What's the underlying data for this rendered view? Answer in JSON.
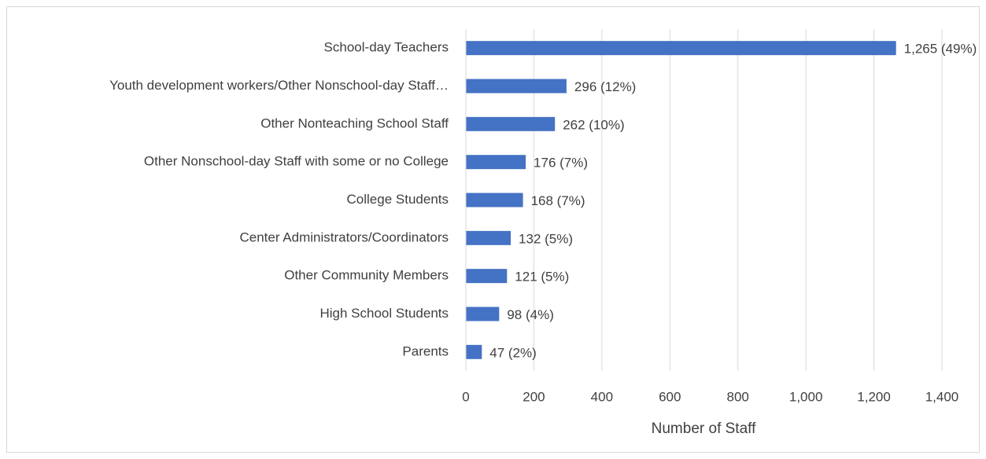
{
  "chart_data": {
    "type": "barh",
    "categories": [
      "School-day Teachers",
      "Youth development workers/Other Nonschool-day Staff…",
      "Other Nonteaching School Staff",
      "Other Nonschool-day Staff with some or no College",
      "College Students",
      "Center Administrators/Coordinators",
      "Other Community Members",
      "High School Students",
      "Parents"
    ],
    "values": [
      1265,
      296,
      262,
      176,
      168,
      132,
      121,
      98,
      47
    ],
    "value_labels": [
      "1,265 (49%)",
      "296 (12%)",
      "262 (10%)",
      "176 (7%)",
      "168 (7%)",
      "132 (5%)",
      "121 (5%)",
      "98 (4%)",
      "47 (2%)"
    ],
    "color": "#4472c4",
    "xlabel": "Number of Staff",
    "xlim": [
      0,
      1400
    ],
    "xticks": [
      0,
      200,
      400,
      600,
      800,
      {
        "value": 1000,
        "label": "1,000"
      },
      {
        "value": 1200,
        "label": "1,200"
      },
      {
        "value": 1400,
        "label": "1,400"
      }
    ],
    "grid": true
  }
}
